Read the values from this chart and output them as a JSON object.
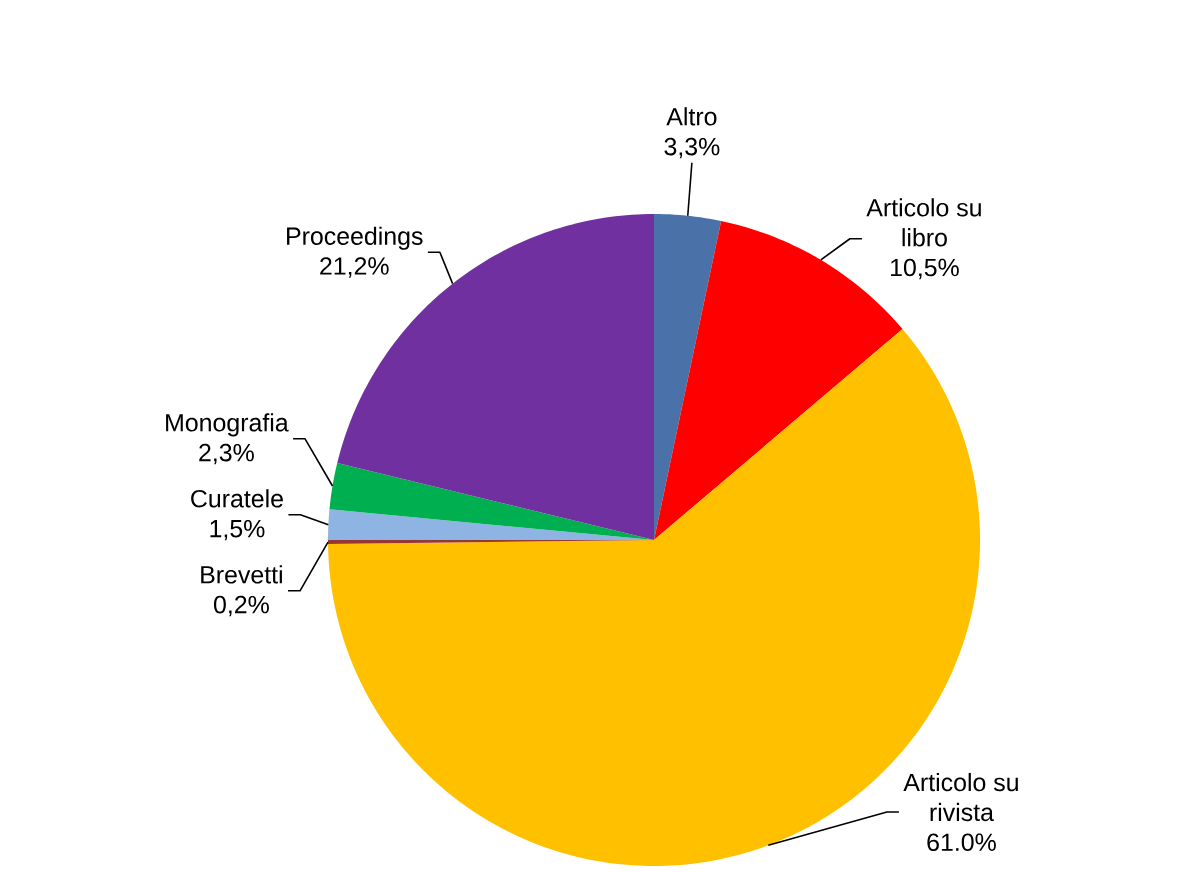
{
  "chart_data": {
    "type": "pie",
    "categories": [
      "Altro",
      "Articolo su libro",
      "Articolo su rivista",
      "Brevetti",
      "Curatele",
      "Monografia",
      "Proceedings"
    ],
    "values": [
      3.3,
      10.5,
      61.0,
      0.2,
      1.5,
      2.3,
      21.2
    ],
    "colors": [
      "#4a72a8",
      "#ff0000",
      "#ffc000",
      "#953735",
      "#8eb4e3",
      "#00b050",
      "#7030a0"
    ],
    "value_labels": [
      "3,3%",
      "10,5%",
      "61.0%",
      "0,2%",
      "1,5%",
      "2,3%",
      "21,2%"
    ]
  }
}
